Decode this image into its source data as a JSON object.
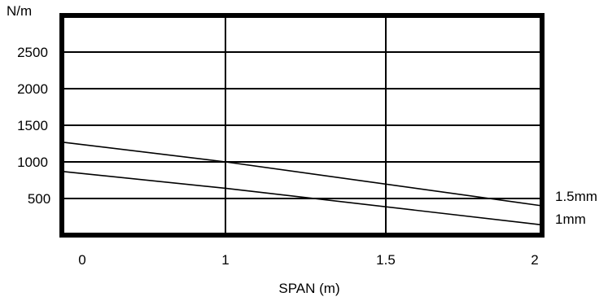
{
  "chart_data": {
    "type": "line",
    "title": "",
    "xlabel": "SPAN (m)",
    "ylabel": "N/m",
    "x_tick_labels": [
      "0",
      "1",
      "1.5",
      "2"
    ],
    "y_tick_labels": [
      "500",
      "1000",
      "1500",
      "2000",
      "2500"
    ],
    "ylim": [
      0,
      3000
    ],
    "grid": true,
    "series": [
      {
        "name": "1.5mm",
        "x": [
          "0",
          "1",
          "2"
        ],
        "values": [
          1270,
          1000,
          400
        ]
      },
      {
        "name": "1mm",
        "x": [
          "0",
          "1",
          "2"
        ],
        "values": [
          870,
          640,
          140
        ]
      }
    ]
  }
}
